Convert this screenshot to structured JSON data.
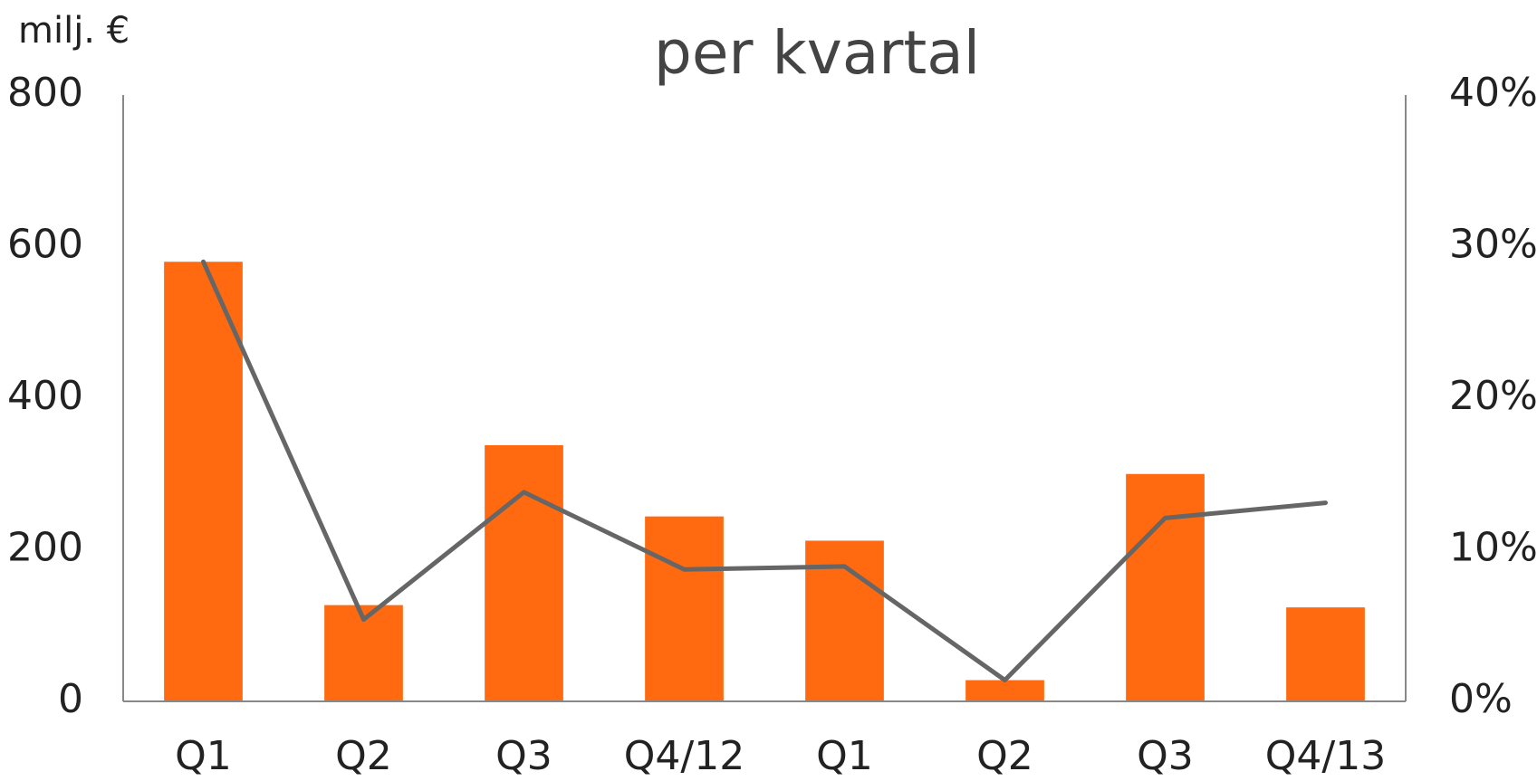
{
  "chart_data": {
    "type": "bar_line",
    "title": "per kvartal",
    "y_label": "milj. €",
    "categories": [
      "Q1",
      "Q2",
      "Q3",
      "Q4/12",
      "Q1",
      "Q2",
      "Q3",
      "Q4/13"
    ],
    "series": [
      {
        "type": "bar",
        "color": "#ff6a10",
        "values": [
          580,
          127,
          338,
          244,
          212,
          28,
          300,
          124
        ]
      },
      {
        "type": "line",
        "axis": "y2",
        "color": "#666666",
        "values": [
          29,
          5.4,
          13.8,
          8.7,
          8.9,
          1.4,
          12.1,
          13.1
        ]
      }
    ],
    "ylim": [
      0,
      800
    ],
    "yticks": [
      0,
      200,
      400,
      600,
      800
    ],
    "y2lim": [
      0,
      40
    ],
    "y2ticks": [
      {
        "value": 0,
        "label": "0%"
      },
      {
        "value": 10,
        "label": "10%"
      },
      {
        "value": 20,
        "label": "20%"
      },
      {
        "value": 30,
        "label": "30%"
      },
      {
        "value": 40,
        "label": "40%"
      }
    ]
  }
}
